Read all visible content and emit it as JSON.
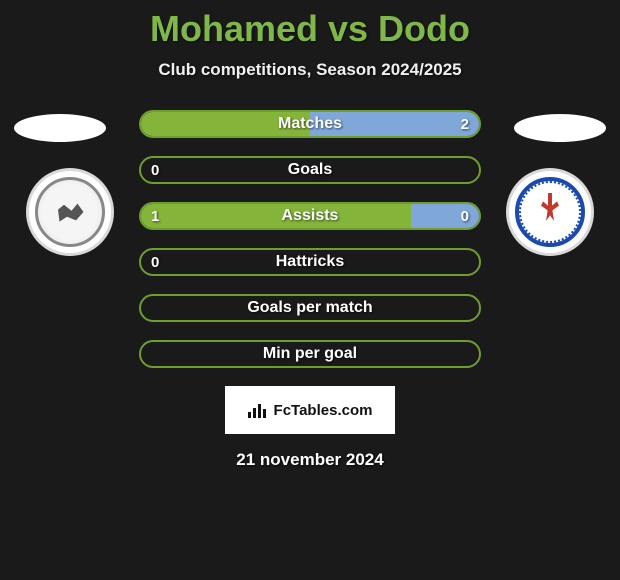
{
  "title": "Mohamed vs Dodo",
  "subtitle": "Club competitions, Season 2024/2025",
  "date": "21 november 2024",
  "watermark_text": "FcTables.com",
  "colors": {
    "title": "#7fb848",
    "background": "#1a1a1a",
    "bar_border_green": "#6e9e2f",
    "bar_fill_green": "#85b43a",
    "bar_fill_blue": "#7fa8d9",
    "text": "#ffffff"
  },
  "bars": [
    {
      "label": "Matches",
      "left_value": "",
      "right_value": "2",
      "left_fill_pct": 50,
      "right_fill_pct": 50,
      "left_fill_color": "#85b43a",
      "right_fill_color": "#7fa8d9",
      "border_color": "#6e9e2f"
    },
    {
      "label": "Goals",
      "left_value": "0",
      "right_value": "",
      "left_fill_pct": 0,
      "right_fill_pct": 0,
      "left_fill_color": "#85b43a",
      "right_fill_color": "#7fa8d9",
      "border_color": "#6e9e2f"
    },
    {
      "label": "Assists",
      "left_value": "1",
      "right_value": "0",
      "left_fill_pct": 80,
      "right_fill_pct": 20,
      "left_fill_color": "#85b43a",
      "right_fill_color": "#7fa8d9",
      "border_color": "#6e9e2f"
    },
    {
      "label": "Hattricks",
      "left_value": "0",
      "right_value": "",
      "left_fill_pct": 0,
      "right_fill_pct": 0,
      "left_fill_color": "#85b43a",
      "right_fill_color": "#7fa8d9",
      "border_color": "#6e9e2f"
    },
    {
      "label": "Goals per match",
      "left_value": "",
      "right_value": "",
      "left_fill_pct": 0,
      "right_fill_pct": 0,
      "left_fill_color": "#85b43a",
      "right_fill_color": "#7fa8d9",
      "border_color": "#6e9e2f"
    },
    {
      "label": "Min per goal",
      "left_value": "",
      "right_value": "",
      "left_fill_pct": 0,
      "right_fill_pct": 0,
      "left_fill_color": "#85b43a",
      "right_fill_color": "#7fa8d9",
      "border_color": "#6e9e2f"
    }
  ]
}
